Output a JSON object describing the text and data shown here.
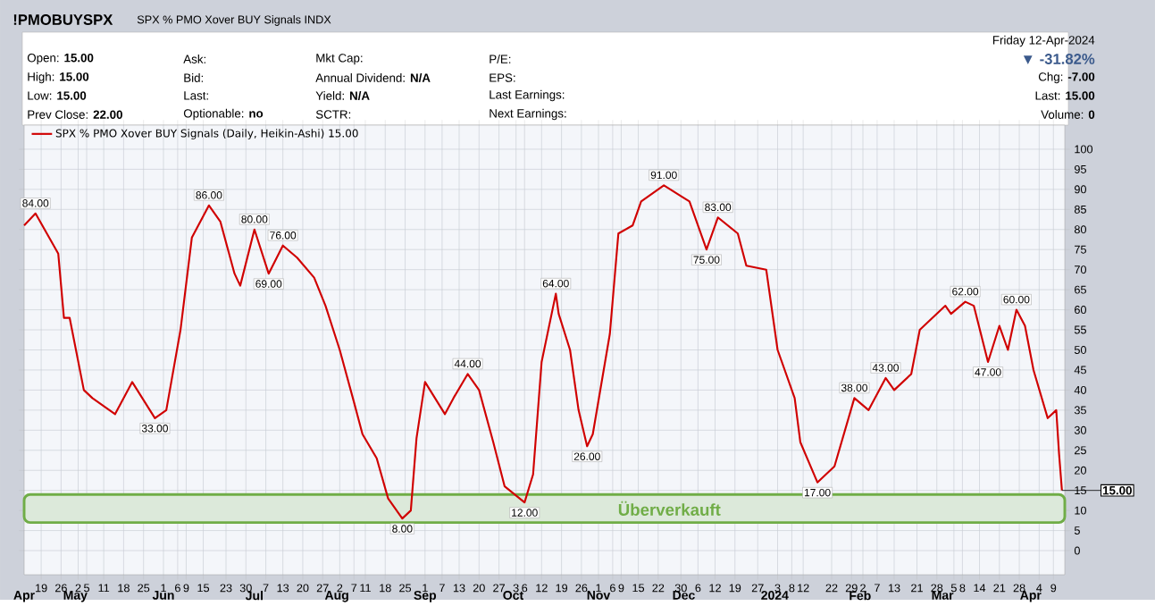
{
  "chart_data": {
    "type": "line",
    "title": "!PMOBUYSPX",
    "subtitle": "SPX % PMO Xover BUY Signals INDX",
    "series": [
      {
        "name": "SPX % PMO Xover BUY Signals (Daily, Heikin-Ashi) 15.00",
        "color": "#d00000",
        "x": [
          "2023-04-13",
          "2023-04-17",
          "2023-04-21",
          "2023-04-25",
          "2023-04-27",
          "2023-04-29",
          "2023-05-04",
          "2023-05-07",
          "2023-05-15",
          "2023-05-21",
          "2023-05-29",
          "2023-06-02",
          "2023-06-07",
          "2023-06-11",
          "2023-06-17",
          "2023-06-21",
          "2023-06-26",
          "2023-06-28",
          "2023-07-03",
          "2023-07-08",
          "2023-07-13",
          "2023-07-18",
          "2023-07-24",
          "2023-07-28",
          "2023-08-02",
          "2023-08-07",
          "2023-08-10",
          "2023-08-15",
          "2023-08-19",
          "2023-08-24",
          "2023-08-27",
          "2023-08-29",
          "2023-09-01",
          "2023-09-08",
          "2023-09-11",
          "2023-09-16",
          "2023-09-20",
          "2023-09-25",
          "2023-09-29",
          "2023-10-06",
          "2023-10-09",
          "2023-10-12",
          "2023-10-17",
          "2023-10-18",
          "2023-10-22",
          "2023-10-25",
          "2023-10-28",
          "2023-10-30",
          "2023-11-05",
          "2023-11-08",
          "2023-11-13",
          "2023-11-16",
          "2023-11-24",
          "2023-12-03",
          "2023-12-09",
          "2023-12-13",
          "2023-12-20",
          "2023-12-23",
          "2023-12-30",
          "2024-01-03",
          "2024-01-09",
          "2024-01-11",
          "2024-01-17",
          "2024-01-23",
          "2024-01-30",
          "2024-02-04",
          "2024-02-10",
          "2024-02-13",
          "2024-02-19",
          "2024-02-22",
          "2024-03-02",
          "2024-03-04",
          "2024-03-09",
          "2024-03-12",
          "2024-03-17",
          "2024-03-21",
          "2024-03-24",
          "2024-03-27",
          "2024-03-30",
          "2024-04-02",
          "2024-04-07",
          "2024-04-10",
          "2024-04-11",
          "2024-04-12"
        ],
        "values": [
          81,
          84,
          79,
          74,
          58,
          58,
          40,
          38,
          34,
          42,
          33,
          35,
          55,
          78,
          86,
          82,
          69,
          66,
          80,
          69,
          76,
          73,
          68,
          61,
          50,
          37,
          29,
          23,
          13,
          8,
          10,
          28,
          42,
          34,
          38,
          44,
          40,
          27,
          16,
          12,
          19,
          47,
          64,
          59,
          50,
          35,
          26,
          29,
          54,
          79,
          81,
          87,
          91,
          87,
          75,
          83,
          79,
          71,
          70,
          50,
          38,
          27,
          17,
          21,
          38,
          35,
          43,
          40,
          44,
          55,
          61,
          59,
          62,
          61,
          47,
          56,
          50,
          60,
          56,
          45,
          33,
          35,
          24,
          15
        ]
      }
    ],
    "xlim": [
      "2023-04-13",
      "2024-04-13"
    ],
    "xticks": [
      {
        "value": "2023-04-19",
        "label": "19"
      },
      {
        "value": "2023-04-26",
        "label": "26"
      },
      {
        "value": "2023-05-02",
        "label": "2"
      },
      {
        "value": "2023-05-05",
        "label": "5"
      },
      {
        "value": "2023-05-11",
        "label": "11"
      },
      {
        "value": "2023-05-18",
        "label": "18"
      },
      {
        "value": "2023-05-25",
        "label": "25"
      },
      {
        "value": "2023-06-01",
        "label": "1"
      },
      {
        "value": "2023-06-06",
        "label": "6"
      },
      {
        "value": "2023-06-09",
        "label": "9"
      },
      {
        "value": "2023-06-15",
        "label": "15"
      },
      {
        "value": "2023-06-23",
        "label": "23"
      },
      {
        "value": "2023-06-30",
        "label": "30"
      },
      {
        "value": "2023-07-07",
        "label": "7"
      },
      {
        "value": "2023-07-13",
        "label": "13"
      },
      {
        "value": "2023-07-20",
        "label": "20"
      },
      {
        "value": "2023-07-27",
        "label": "27"
      },
      {
        "value": "2023-08-02",
        "label": "2"
      },
      {
        "value": "2023-08-07",
        "label": "7"
      },
      {
        "value": "2023-08-11",
        "label": "11"
      },
      {
        "value": "2023-08-18",
        "label": "18"
      },
      {
        "value": "2023-08-25",
        "label": "25"
      },
      {
        "value": "2023-09-01",
        "label": "1"
      },
      {
        "value": "2023-09-07",
        "label": "7"
      },
      {
        "value": "2023-09-13",
        "label": "13"
      },
      {
        "value": "2023-09-20",
        "label": "20"
      },
      {
        "value": "2023-09-27",
        "label": "27"
      },
      {
        "value": "2023-10-03",
        "label": "3"
      },
      {
        "value": "2023-10-06",
        "label": "6"
      },
      {
        "value": "2023-10-12",
        "label": "12"
      },
      {
        "value": "2023-10-19",
        "label": "19"
      },
      {
        "value": "2023-10-26",
        "label": "26"
      },
      {
        "value": "2023-11-01",
        "label": "1"
      },
      {
        "value": "2023-11-06",
        "label": "6"
      },
      {
        "value": "2023-11-09",
        "label": "9"
      },
      {
        "value": "2023-11-15",
        "label": "15"
      },
      {
        "value": "2023-11-22",
        "label": "22"
      },
      {
        "value": "2023-11-30",
        "label": "30"
      },
      {
        "value": "2023-12-06",
        "label": "6"
      },
      {
        "value": "2023-12-12",
        "label": "12"
      },
      {
        "value": "2023-12-19",
        "label": "19"
      },
      {
        "value": "2023-12-27",
        "label": "27"
      },
      {
        "value": "2024-01-03",
        "label": "3"
      },
      {
        "value": "2024-01-08",
        "label": "8"
      },
      {
        "value": "2024-01-12",
        "label": "12"
      },
      {
        "value": "2024-01-22",
        "label": "22"
      },
      {
        "value": "2024-01-29",
        "label": "29"
      },
      {
        "value": "2024-02-02",
        "label": "2"
      },
      {
        "value": "2024-02-07",
        "label": "7"
      },
      {
        "value": "2024-02-13",
        "label": "13"
      },
      {
        "value": "2024-02-21",
        "label": "21"
      },
      {
        "value": "2024-02-28",
        "label": "28"
      },
      {
        "value": "2024-03-05",
        "label": "5"
      },
      {
        "value": "2024-03-08",
        "label": "8"
      },
      {
        "value": "2024-03-14",
        "label": "14"
      },
      {
        "value": "2024-03-21",
        "label": "21"
      },
      {
        "value": "2024-03-28",
        "label": "28"
      },
      {
        "value": "2024-04-04",
        "label": "4"
      },
      {
        "value": "2024-04-09",
        "label": "9"
      }
    ],
    "x2lim": [
      "2023-04-13",
      "2024-04-13"
    ],
    "x2ticks": [
      {
        "value": "2023-04-13",
        "label": "Apr"
      },
      {
        "value": "2023-05-01",
        "label": "May"
      },
      {
        "value": "2023-06-01",
        "label": "Jun"
      },
      {
        "value": "2023-07-03",
        "label": "Jul"
      },
      {
        "value": "2023-08-01",
        "label": "Aug"
      },
      {
        "value": "2023-09-01",
        "label": "Sep"
      },
      {
        "value": "2023-10-02",
        "label": "Oct"
      },
      {
        "value": "2023-11-01",
        "label": "Nov"
      },
      {
        "value": "2023-12-01",
        "label": "Dec"
      },
      {
        "value": "2024-01-02",
        "label": "2024"
      },
      {
        "value": "2024-02-01",
        "label": "Feb"
      },
      {
        "value": "2024-03-01",
        "label": "Mar"
      },
      {
        "value": "2024-04-01",
        "label": "Apr"
      }
    ],
    "ylim": [
      -6,
      106
    ],
    "yticks": [
      0,
      5,
      10,
      15,
      20,
      25,
      30,
      35,
      40,
      45,
      50,
      55,
      60,
      65,
      70,
      75,
      80,
      85,
      90,
      95,
      100
    ],
    "grid": true,
    "legend": "top left",
    "bands": [
      {
        "axis": "y",
        "from": 7,
        "to": 14,
        "label": "Überverkauft",
        "color": "#70ad47"
      }
    ],
    "annotations": [
      "Open: **15.00**",
      "High: **15.00**",
      "Low: **15.00**",
      "Prev Close: **22.00**",
      "Ask:",
      "Bid:",
      "Last:",
      "Optionable: **no**",
      "Mkt Cap:",
      "Annual Dividend: **N/A**",
      "Yield: **N/A**",
      "SCTR:",
      "P/E:",
      "EPS:",
      "Last Earnings:",
      "Next Earnings:",
      "Friday  12-Apr-2024",
      "▼ -31.82%",
      "Chg: **-7.00**",
      "Last: **15.00**",
      "Volume: **0**",
      {
        "text": "84.00",
        "x": "2023-04-17",
        "y": 84
      },
      {
        "text": "33.00",
        "x": "2023-05-29",
        "y": 33
      },
      {
        "text": "86.00",
        "x": "2023-06-17",
        "y": 86
      },
      {
        "text": "80.00",
        "x": "2023-07-03",
        "y": 80
      },
      {
        "text": "69.00",
        "x": "2023-07-08",
        "y": 69
      },
      {
        "text": "76.00",
        "x": "2023-07-13",
        "y": 76
      },
      {
        "text": "8.00",
        "x": "2023-08-24",
        "y": 8
      },
      {
        "text": "44.00",
        "x": "2023-09-16",
        "y": 44
      },
      {
        "text": "12.00",
        "x": "2023-10-06",
        "y": 12
      },
      {
        "text": "64.00",
        "x": "2023-10-17",
        "y": 64
      },
      {
        "text": "26.00",
        "x": "2023-10-28",
        "y": 26
      },
      {
        "text": "91.00",
        "x": "2023-11-24",
        "y": 91
      },
      {
        "text": "75.00",
        "x": "2023-12-09",
        "y": 75
      },
      {
        "text": "83.00",
        "x": "2023-12-13",
        "y": 83
      },
      {
        "text": "17.00",
        "x": "2024-01-17",
        "y": 17
      },
      {
        "text": "38.00",
        "x": "2024-01-30",
        "y": 38
      },
      {
        "text": "43.00",
        "x": "2024-02-10",
        "y": 43
      },
      {
        "text": "62.00",
        "x": "2024-03-09",
        "y": 62
      },
      {
        "text": "47.00",
        "x": "2024-03-17",
        "y": 47
      },
      {
        "text": "60.00",
        "x": "2024-03-27",
        "y": 60
      },
      {
        "text": "15.00",
        "x": "2024-04-12",
        "y": 15
      }
    ]
  }
}
